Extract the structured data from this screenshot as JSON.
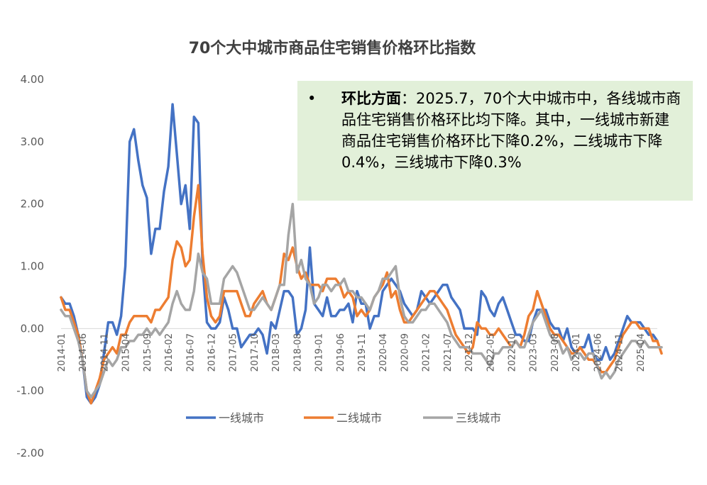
{
  "chart_data": {
    "type": "line",
    "title": "70个大中城市商品住宅销售价格环比指数",
    "ylim": [
      -2,
      4
    ],
    "yticks": [
      "4.00",
      "3.00",
      "2.00",
      "1.00",
      "0.00",
      "-1.00",
      "-2.00"
    ],
    "x_tick_labels": [
      "2014-01",
      "2014-06",
      "2014-11",
      "2015-04",
      "2015-09",
      "2016-02",
      "2016-07",
      "2016-12",
      "2017-05",
      "2017-10",
      "2018-03",
      "2018-08",
      "2019-01",
      "2019-06",
      "2019-11",
      "2020-04",
      "2020-09",
      "2021-02",
      "2021-07",
      "2021-12",
      "2022-05",
      "2022-10",
      "2023-03",
      "2023-08",
      "2024-01",
      "2024-06",
      "2024-11",
      "2025-04"
    ],
    "x_start": "2014-01",
    "x_end": "2025-07",
    "series": [
      {
        "name": "一线城市",
        "color": "#4472C4",
        "values": [
          0.5,
          0.4,
          0.4,
          0.2,
          -0.1,
          -0.5,
          -1.1,
          -1.2,
          -1.1,
          -0.9,
          -0.4,
          0.1,
          0.1,
          -0.1,
          0.2,
          1.0,
          3.0,
          3.2,
          2.7,
          2.3,
          2.1,
          1.2,
          1.6,
          1.6,
          2.2,
          2.6,
          3.6,
          2.8,
          2.0,
          2.3,
          1.6,
          3.4,
          3.3,
          1.0,
          0.1,
          0.0,
          0.0,
          0.1,
          0.5,
          0.3,
          0.0,
          0.0,
          -0.3,
          -0.2,
          -0.1,
          -0.1,
          0.0,
          -0.1,
          -0.4,
          0.1,
          0.0,
          0.3,
          0.6,
          0.6,
          0.5,
          -0.1,
          0.0,
          0.3,
          1.3,
          0.4,
          0.3,
          0.2,
          0.5,
          0.2,
          0.2,
          0.3,
          0.3,
          0.4,
          0.1,
          0.6,
          0.4,
          0.4,
          0.0,
          0.2,
          0.2,
          0.6,
          0.7,
          0.8,
          0.7,
          0.6,
          0.4,
          0.3,
          0.2,
          0.3,
          0.6,
          0.5,
          0.4,
          0.5,
          0.6,
          0.7,
          0.7,
          0.5,
          0.4,
          0.3,
          0.0,
          0.0,
          0.0,
          -0.1,
          0.6,
          0.5,
          0.3,
          0.2,
          0.4,
          0.5,
          0.3,
          0.1,
          -0.1,
          -0.1,
          -0.2,
          -0.2,
          0.1,
          0.3,
          0.3,
          0.3,
          0.1,
          0.0,
          0.0,
          -0.2,
          0.0,
          -0.3,
          -0.4,
          -0.3,
          -0.3,
          -0.1,
          -0.4,
          -0.5,
          -0.5,
          -0.3,
          -0.5,
          -0.4,
          -0.2,
          0.0,
          0.2,
          0.1,
          0.1,
          0.1,
          0.0,
          -0.1,
          -0.1,
          -0.2
        ]
      },
      {
        "name": "二线城市",
        "color": "#ED7D31",
        "values": [
          0.5,
          0.3,
          0.3,
          0.1,
          -0.1,
          -0.5,
          -1.0,
          -1.2,
          -1.0,
          -0.8,
          -0.5,
          -0.4,
          -0.3,
          -0.4,
          -0.1,
          -0.1,
          0.1,
          0.2,
          0.2,
          0.2,
          0.2,
          0.1,
          0.3,
          0.3,
          0.4,
          0.5,
          1.1,
          1.4,
          1.3,
          1.0,
          1.1,
          1.8,
          2.3,
          1.2,
          0.5,
          0.2,
          0.1,
          0.2,
          0.6,
          0.6,
          0.6,
          0.6,
          0.4,
          0.2,
          0.2,
          0.4,
          0.5,
          0.6,
          0.4,
          0.3,
          0.5,
          0.7,
          1.2,
          1.1,
          1.3,
          1.0,
          0.8,
          0.9,
          0.7,
          0.7,
          0.7,
          0.6,
          0.8,
          0.8,
          0.8,
          0.7,
          0.5,
          0.6,
          0.5,
          0.2,
          0.3,
          0.2,
          0.3,
          0.5,
          0.6,
          0.7,
          0.9,
          0.5,
          0.6,
          0.3,
          0.1,
          0.1,
          0.2,
          0.3,
          0.4,
          0.5,
          0.6,
          0.6,
          0.5,
          0.4,
          0.3,
          0.1,
          -0.1,
          -0.2,
          -0.3,
          -0.4,
          -0.3,
          0.1,
          0.0,
          0.0,
          -0.1,
          -0.1,
          0.0,
          -0.1,
          -0.2,
          -0.3,
          -0.2,
          -0.3,
          -0.1,
          0.2,
          0.3,
          0.6,
          0.4,
          0.2,
          0.0,
          -0.1,
          -0.1,
          -0.2,
          -0.3,
          -0.4,
          -0.4,
          -0.3,
          -0.4,
          -0.5,
          -0.5,
          -0.6,
          -0.7,
          -0.7,
          -0.6,
          -0.5,
          -0.3,
          -0.1,
          0.0,
          0.1,
          0.1,
          0.0,
          0.0,
          0.0,
          -0.2,
          -0.2,
          -0.4
        ]
      },
      {
        "name": "三线城市",
        "color": "#A5A5A5",
        "values": [
          0.3,
          0.2,
          0.2,
          0.0,
          -0.2,
          -0.5,
          -1.0,
          -1.1,
          -1.0,
          -0.9,
          -0.7,
          -0.5,
          -0.6,
          -0.5,
          -0.3,
          -0.3,
          -0.2,
          -0.2,
          -0.1,
          -0.1,
          0.0,
          -0.1,
          0.0,
          -0.1,
          0.0,
          0.1,
          0.4,
          0.6,
          0.4,
          0.3,
          0.3,
          0.6,
          1.2,
          0.9,
          0.8,
          0.4,
          0.4,
          0.4,
          0.8,
          0.9,
          1.0,
          0.9,
          0.7,
          0.5,
          0.3,
          0.3,
          0.4,
          0.5,
          0.4,
          0.3,
          0.5,
          0.7,
          0.7,
          1.5,
          2.0,
          0.9,
          1.1,
          0.8,
          0.7,
          0.4,
          0.5,
          0.7,
          0.7,
          0.6,
          0.7,
          0.7,
          0.8,
          0.6,
          0.6,
          0.5,
          0.5,
          0.4,
          0.3,
          0.5,
          0.6,
          0.8,
          0.8,
          0.9,
          1.0,
          0.5,
          0.2,
          0.1,
          0.1,
          0.2,
          0.3,
          0.3,
          0.4,
          0.4,
          0.3,
          0.2,
          0.1,
          -0.1,
          -0.2,
          -0.3,
          -0.3,
          -0.3,
          -0.4,
          -0.4,
          -0.4,
          -0.5,
          -0.6,
          -0.4,
          -0.4,
          -0.3,
          -0.3,
          -0.3,
          -0.2,
          -0.3,
          -0.3,
          -0.1,
          0.1,
          0.2,
          0.3,
          0.1,
          -0.1,
          -0.2,
          -0.2,
          -0.4,
          -0.3,
          -0.5,
          -0.4,
          -0.4,
          -0.5,
          -0.4,
          -0.4,
          -0.6,
          -0.8,
          -0.7,
          -0.8,
          -0.7,
          -0.5,
          -0.4,
          -0.3,
          -0.2,
          -0.2,
          -0.3,
          -0.2,
          -0.3,
          -0.3,
          -0.3,
          -0.3
        ]
      }
    ],
    "legend_placement": "bottom"
  },
  "annotation": {
    "bullet": "•",
    "heading": "环比方面",
    "body": "：2025.7，70个大中城市中，各线城市商品住宅销售价格环比均下降。其中，一线城市新建商品住宅销售价格环比下降0.2%，二线城市下降0.4%，三线城市下降0.3%"
  }
}
